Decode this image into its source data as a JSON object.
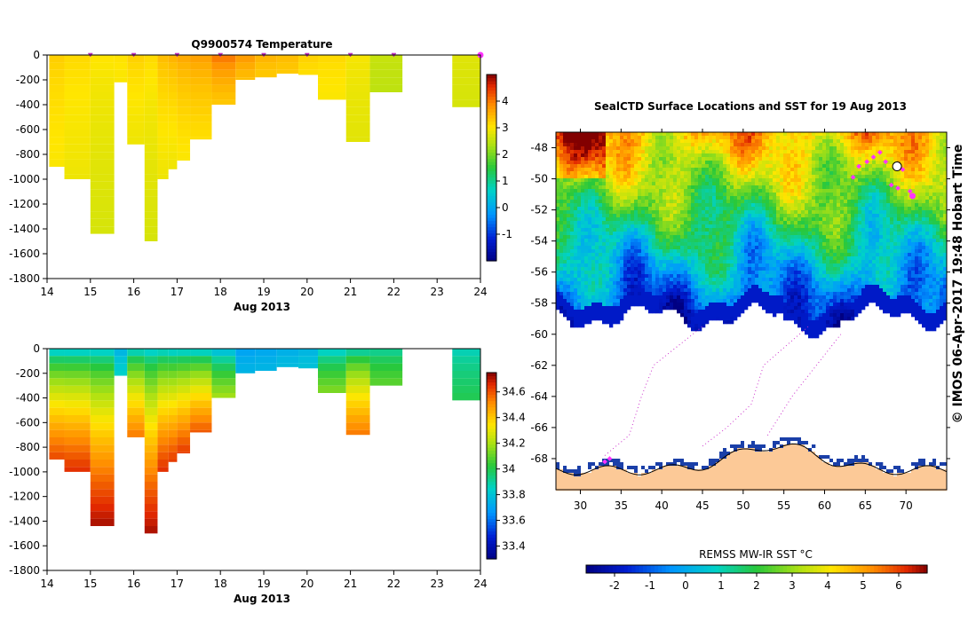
{
  "chart_data": [
    {
      "type": "heatmap",
      "title": "Q9900574  Temperature",
      "xlabel": "Aug 2013",
      "ylabel": "",
      "xlim": [
        14,
        24
      ],
      "ylim": [
        -1800,
        0
      ],
      "x_ticks": [
        "14",
        "15",
        "16",
        "17",
        "18",
        "19",
        "20",
        "21",
        "22",
        "23",
        "24"
      ],
      "y_ticks": [
        "0",
        "-200",
        "-400",
        "-600",
        "-800",
        "-1000",
        "-1200",
        "-1400",
        "-1600",
        "-1800"
      ],
      "colorbar": {
        "range": [
          -2,
          5
        ],
        "ticks": [
          "-1",
          "0",
          "1",
          "2",
          "3",
          "4"
        ]
      },
      "profiles": [
        {
          "x0": 14.05,
          "x1": 14.4,
          "depth": 900,
          "surface": 3.3,
          "deep": 3.0
        },
        {
          "x0": 14.4,
          "x1": 15.0,
          "depth": 1000,
          "surface": 3.2,
          "deep": 2.9
        },
        {
          "x0": 15.0,
          "x1": 15.55,
          "depth": 1440,
          "surface": 3.1,
          "deep": 2.7
        },
        {
          "x0": 15.55,
          "x1": 15.85,
          "depth": 220,
          "surface": 3.1,
          "deep": 3.0
        },
        {
          "x0": 15.85,
          "x1": 16.25,
          "depth": 720,
          "surface": 3.3,
          "deep": 2.9
        },
        {
          "x0": 16.25,
          "x1": 16.55,
          "depth": 1500,
          "surface": 3.2,
          "deep": 2.7
        },
        {
          "x0": 16.55,
          "x1": 16.8,
          "depth": 1000,
          "surface": 3.5,
          "deep": 2.9
        },
        {
          "x0": 16.8,
          "x1": 17.0,
          "depth": 920,
          "surface": 3.6,
          "deep": 2.9
        },
        {
          "x0": 17.0,
          "x1": 17.3,
          "depth": 850,
          "surface": 3.7,
          "deep": 3.0
        },
        {
          "x0": 17.3,
          "x1": 17.8,
          "depth": 680,
          "surface": 3.8,
          "deep": 3.1
        },
        {
          "x0": 17.8,
          "x1": 18.35,
          "depth": 400,
          "surface": 4.2,
          "deep": 3.3
        },
        {
          "x0": 18.35,
          "x1": 18.8,
          "depth": 200,
          "surface": 3.9,
          "deep": 3.4
        },
        {
          "x0": 18.8,
          "x1": 19.3,
          "depth": 180,
          "surface": 3.6,
          "deep": 3.3
        },
        {
          "x0": 19.3,
          "x1": 19.8,
          "depth": 150,
          "surface": 3.5,
          "deep": 3.3
        },
        {
          "x0": 19.8,
          "x1": 20.25,
          "depth": 160,
          "surface": 3.3,
          "deep": 3.1
        },
        {
          "x0": 20.25,
          "x1": 20.9,
          "depth": 360,
          "surface": 3.2,
          "deep": 3.0
        },
        {
          "x0": 20.9,
          "x1": 21.45,
          "depth": 700,
          "surface": 3.0,
          "deep": 2.8
        },
        {
          "x0": 21.45,
          "x1": 22.2,
          "depth": 300,
          "surface": 2.6,
          "deep": 2.5
        },
        {
          "x0": 23.35,
          "x1": 24.0,
          "depth": 420,
          "surface": 2.8,
          "deep": 2.7
        }
      ],
      "markers": [
        15,
        16,
        17,
        18,
        19,
        20,
        21,
        22,
        24
      ]
    },
    {
      "type": "heatmap",
      "title": "",
      "xlabel": "Aug 2013",
      "ylabel": "",
      "xlim": [
        14,
        24
      ],
      "ylim": [
        -1800,
        0
      ],
      "x_ticks": [
        "14",
        "15",
        "16",
        "17",
        "18",
        "19",
        "20",
        "21",
        "22",
        "23",
        "24"
      ],
      "y_ticks": [
        "0",
        "-200",
        "-400",
        "-600",
        "-800",
        "-1000",
        "-1200",
        "-1400",
        "-1600",
        "-1800"
      ],
      "colorbar": {
        "range": [
          33.3,
          34.75
        ],
        "ticks": [
          "33.4",
          "33.6",
          "33.8",
          "34",
          "34.2",
          "34.4",
          "34.6"
        ]
      },
      "profiles": [
        {
          "x0": 14.05,
          "x1": 14.4,
          "depth": 900,
          "surface": 33.72,
          "deep": 34.62
        },
        {
          "x0": 14.4,
          "x1": 15.0,
          "depth": 1000,
          "surface": 33.72,
          "deep": 34.66
        },
        {
          "x0": 15.0,
          "x1": 15.55,
          "depth": 1440,
          "surface": 33.74,
          "deep": 34.72
        },
        {
          "x0": 15.55,
          "x1": 15.85,
          "depth": 220,
          "surface": 33.72,
          "deep": 33.85
        },
        {
          "x0": 15.85,
          "x1": 16.25,
          "depth": 720,
          "surface": 33.74,
          "deep": 34.55
        },
        {
          "x0": 16.25,
          "x1": 16.55,
          "depth": 1500,
          "surface": 33.74,
          "deep": 34.72
        },
        {
          "x0": 16.55,
          "x1": 16.8,
          "depth": 1000,
          "surface": 33.74,
          "deep": 34.66
        },
        {
          "x0": 16.8,
          "x1": 17.0,
          "depth": 920,
          "surface": 33.72,
          "deep": 34.64
        },
        {
          "x0": 17.0,
          "x1": 17.3,
          "depth": 850,
          "surface": 33.72,
          "deep": 34.64
        },
        {
          "x0": 17.3,
          "x1": 17.8,
          "depth": 680,
          "surface": 33.7,
          "deep": 34.6
        },
        {
          "x0": 17.8,
          "x1": 18.35,
          "depth": 400,
          "surface": 33.68,
          "deep": 34.2
        },
        {
          "x0": 18.35,
          "x1": 18.8,
          "depth": 200,
          "surface": 33.68,
          "deep": 33.76
        },
        {
          "x0": 18.8,
          "x1": 19.3,
          "depth": 180,
          "surface": 33.7,
          "deep": 33.76
        },
        {
          "x0": 19.3,
          "x1": 19.8,
          "depth": 150,
          "surface": 33.72,
          "deep": 33.78
        },
        {
          "x0": 19.8,
          "x1": 20.25,
          "depth": 160,
          "surface": 33.74,
          "deep": 33.8
        },
        {
          "x0": 20.25,
          "x1": 20.9,
          "depth": 360,
          "surface": 33.76,
          "deep": 34.15
        },
        {
          "x0": 20.9,
          "x1": 21.45,
          "depth": 700,
          "surface": 33.78,
          "deep": 34.55
        },
        {
          "x0": 21.45,
          "x1": 22.2,
          "depth": 300,
          "surface": 33.86,
          "deep": 34.1
        },
        {
          "x0": 23.35,
          "x1": 24.0,
          "depth": 420,
          "surface": 33.84,
          "deep": 34.0
        }
      ]
    },
    {
      "type": "heatmap",
      "title": "SealCTD Surface Locations and SST for 19 Aug 2013",
      "xlim": [
        27,
        75
      ],
      "ylim": [
        -70,
        -47
      ],
      "x_ticks": [
        "30",
        "35",
        "40",
        "45",
        "50",
        "55",
        "60",
        "65",
        "70"
      ],
      "y_ticks": [
        "-48",
        "-50",
        "-52",
        "-54",
        "-56",
        "-58",
        "-60",
        "-62",
        "-64",
        "-66",
        "-68"
      ],
      "colorbar_label": "REMSS MW-IR SST °C",
      "colorbar": {
        "range": [
          -2.8,
          6.8
        ],
        "ticks": [
          "-2",
          "-1",
          "0",
          "1",
          "2",
          "3",
          "4",
          "5",
          "6"
        ]
      },
      "side_label": "© IMOS 06-Apr-2017 19:48 Hobart Time",
      "seal_positions": [
        [
          63.5,
          -49.9
        ],
        [
          64.2,
          -49.2
        ],
        [
          65.2,
          -48.9
        ],
        [
          66.0,
          -48.6
        ],
        [
          66.8,
          -48.3
        ],
        [
          67.5,
          -48.9
        ],
        [
          68.2,
          -50.4
        ],
        [
          69.0,
          -50.6
        ],
        [
          70.5,
          -50.8
        ],
        [
          70.8,
          -51.1
        ],
        [
          69.6,
          -49.4
        ],
        [
          33.0,
          -68.2
        ],
        [
          33.6,
          -68.0
        ]
      ]
    }
  ]
}
